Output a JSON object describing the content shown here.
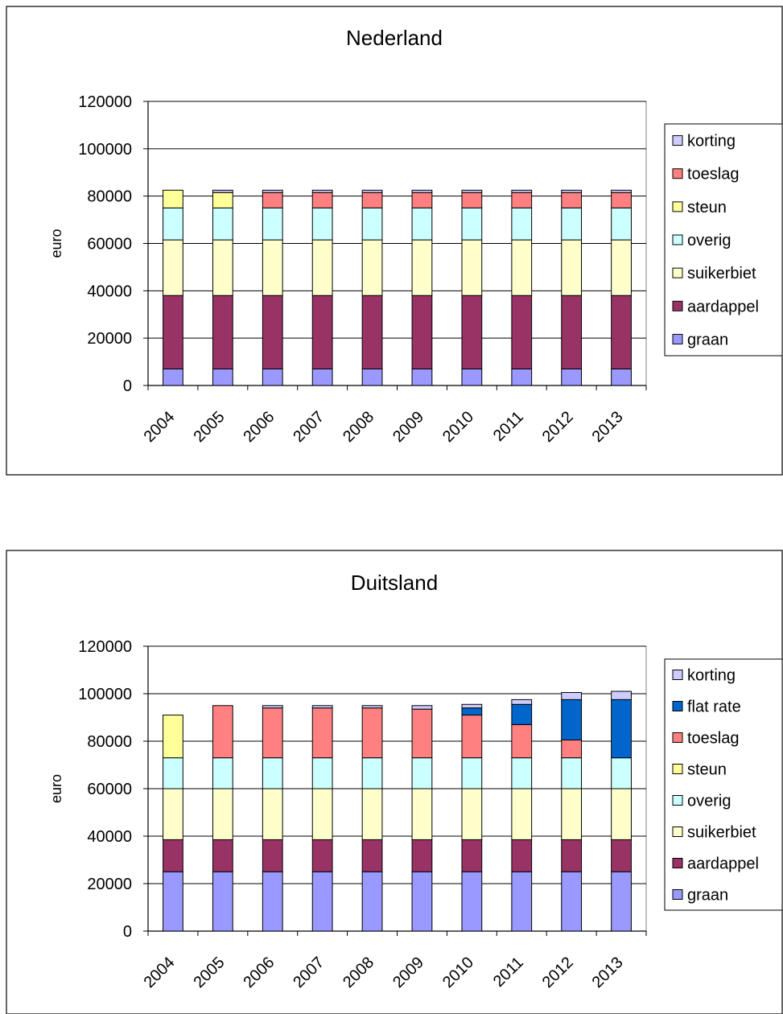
{
  "chart_data": [
    {
      "type": "bar",
      "stacked": true,
      "title": "Nederland",
      "xlabel": "",
      "ylabel": "euro",
      "ylim": [
        0,
        120000
      ],
      "yticks": [
        "0",
        "20000",
        "40000",
        "60000",
        "80000",
        "100000",
        "120000"
      ],
      "categories": [
        "2004",
        "2005",
        "2006",
        "2007",
        "2008",
        "2009",
        "2010",
        "2011",
        "2012",
        "2013"
      ],
      "legend_position": "right",
      "grid": true,
      "series": [
        {
          "name": "graan",
          "color": "#9999ff",
          "values": [
            7000,
            7000,
            7000,
            7000,
            7000,
            7000,
            7000,
            7000,
            7000,
            7000
          ]
        },
        {
          "name": "aardappel",
          "color": "#993366",
          "values": [
            31000,
            31000,
            31000,
            31000,
            31000,
            31000,
            31000,
            31000,
            31000,
            31000
          ]
        },
        {
          "name": "suikerbiet",
          "color": "#ffffcc",
          "values": [
            23500,
            23500,
            23500,
            23500,
            23500,
            23500,
            23500,
            23500,
            23500,
            23500
          ]
        },
        {
          "name": "overig",
          "color": "#ccffff",
          "values": [
            13500,
            13500,
            13500,
            13500,
            13500,
            13500,
            13500,
            13500,
            13500,
            13500
          ]
        },
        {
          "name": "steun",
          "color": "#ffff99",
          "values": [
            7500,
            6500,
            0,
            0,
            0,
            0,
            0,
            0,
            0,
            0
          ]
        },
        {
          "name": "toeslag",
          "color": "#ff8080",
          "values": [
            0,
            0,
            6500,
            6500,
            6500,
            6500,
            6500,
            6500,
            6500,
            6500
          ]
        },
        {
          "name": "korting",
          "color": "#ccccff",
          "values": [
            0,
            1000,
            1000,
            1000,
            1000,
            1000,
            1000,
            1000,
            1000,
            1000
          ]
        }
      ]
    },
    {
      "type": "bar",
      "stacked": true,
      "title": "Duitsland",
      "xlabel": "",
      "ylabel": "euro",
      "ylim": [
        0,
        120000
      ],
      "yticks": [
        "0",
        "20000",
        "40000",
        "60000",
        "80000",
        "100000",
        "120000"
      ],
      "categories": [
        "2004",
        "2005",
        "2006",
        "2007",
        "2008",
        "2009",
        "2010",
        "2011",
        "2012",
        "2013"
      ],
      "legend_position": "right",
      "grid": true,
      "series": [
        {
          "name": "graan",
          "color": "#9999ff",
          "values": [
            25000,
            25000,
            25000,
            25000,
            25000,
            25000,
            25000,
            25000,
            25000,
            25000
          ]
        },
        {
          "name": "aardappel",
          "color": "#993366",
          "values": [
            13500,
            13500,
            13500,
            13500,
            13500,
            13500,
            13500,
            13500,
            13500,
            13500
          ]
        },
        {
          "name": "suikerbiet",
          "color": "#ffffcc",
          "values": [
            21500,
            21500,
            21500,
            21500,
            21500,
            21500,
            21500,
            21500,
            21500,
            21500
          ]
        },
        {
          "name": "overig",
          "color": "#ccffff",
          "values": [
            13000,
            13000,
            13000,
            13000,
            13000,
            13000,
            13000,
            13000,
            13000,
            13000
          ]
        },
        {
          "name": "steun",
          "color": "#ffff99",
          "values": [
            18000,
            0,
            0,
            0,
            0,
            0,
            0,
            0,
            0,
            0
          ]
        },
        {
          "name": "toeslag",
          "color": "#ff8080",
          "values": [
            0,
            22000,
            21000,
            21000,
            21000,
            20500,
            18000,
            14000,
            7500,
            0
          ]
        },
        {
          "name": "flat rate",
          "color": "#0066cc",
          "values": [
            0,
            0,
            0,
            0,
            0,
            0,
            3000,
            8500,
            17000,
            24500
          ]
        },
        {
          "name": "korting",
          "color": "#ccccff",
          "values": [
            0,
            0,
            1000,
            1000,
            1000,
            1500,
            1500,
            2000,
            3000,
            3500
          ]
        }
      ]
    }
  ]
}
